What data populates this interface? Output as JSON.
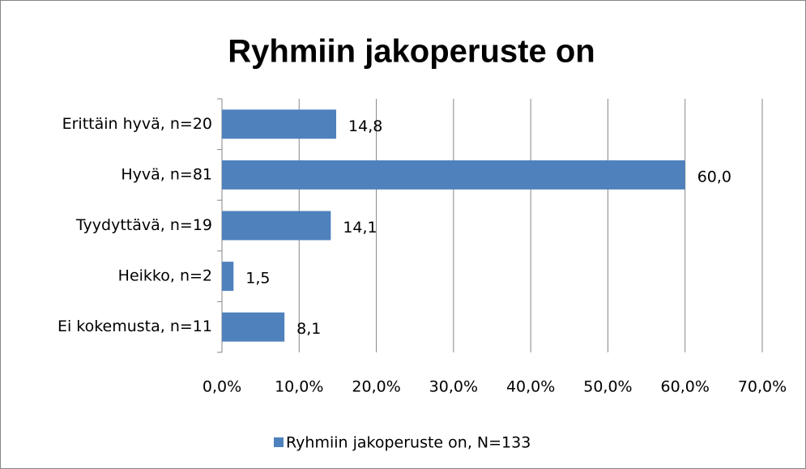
{
  "chart_data": {
    "type": "bar",
    "orientation": "horizontal",
    "title": "Ryhmiin jakoperuste on",
    "categories": [
      "Erittäin hyvä, n=20",
      "Hyvä, n=81",
      "Tyydyttävä, n=19",
      "Heikko, n=2",
      "Ei kokemusta, n=11"
    ],
    "series": [
      {
        "name": "Ryhmiin jakoperuste on, N=133",
        "color": "#4f81bd",
        "values": [
          14.8,
          60.0,
          14.1,
          1.5,
          8.1
        ],
        "value_labels": [
          "14,8",
          "60,0",
          "14,1",
          "1,5",
          "8,1"
        ]
      }
    ],
    "xlim": [
      0,
      70
    ],
    "xticks": [
      {
        "value": 0,
        "label": "0,0%"
      },
      {
        "value": 10,
        "label": "10,0%"
      },
      {
        "value": 20,
        "label": "20,0%"
      },
      {
        "value": 30,
        "label": "30,0%"
      },
      {
        "value": 40,
        "label": "40,0%"
      },
      {
        "value": 50,
        "label": "50,0%"
      },
      {
        "value": 60,
        "label": "60,0%"
      },
      {
        "value": 70,
        "label": "70,0%"
      }
    ],
    "grid": true,
    "legend": "bottom"
  }
}
